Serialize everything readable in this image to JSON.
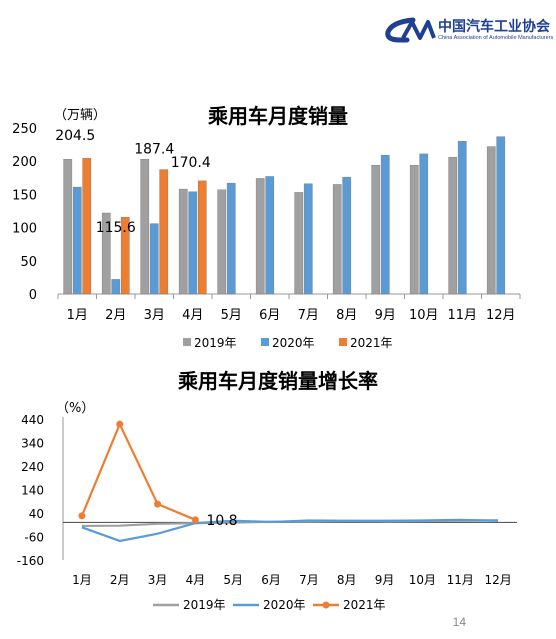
{
  "header": {
    "logo_mark": "CAAM",
    "org_name_cn": "中国汽车工业协会",
    "org_name_en": "China Association of Automobile Manufacturers"
  },
  "page_number": "14",
  "colors": {
    "s2019": "#a0a0a0",
    "s2020": "#5b9bd5",
    "s2021": "#ed7d31",
    "brand": "#1f3f93"
  },
  "chart_data": [
    {
      "type": "bar",
      "title": "乘用车月度销量",
      "ylabel": "（万辆）",
      "categories": [
        "1月",
        "2月",
        "3月",
        "4月",
        "5月",
        "6月",
        "7月",
        "8月",
        "9月",
        "10月",
        "11月",
        "12月"
      ],
      "ylim": [
        0,
        250
      ],
      "yticks": [
        0,
        50,
        100,
        150,
        200,
        250
      ],
      "legend_position": "bottom",
      "series": [
        {
          "name": "2019年",
          "values": [
            203,
            122,
            203,
            158,
            157,
            174,
            153,
            165,
            194,
            194,
            206,
            222
          ]
        },
        {
          "name": "2020年",
          "values": [
            161,
            22,
            106,
            154,
            167,
            177,
            166,
            176,
            209,
            211,
            230,
            237
          ]
        },
        {
          "name": "2021年",
          "values": [
            204.5,
            115.6,
            187.4,
            170.4,
            null,
            null,
            null,
            null,
            null,
            null,
            null,
            null
          ]
        }
      ],
      "data_labels": [
        {
          "series": 2,
          "index": 0,
          "text": "204.5"
        },
        {
          "series": 2,
          "index": 1,
          "text": "115.6"
        },
        {
          "series": 2,
          "index": 2,
          "text": "187.4"
        },
        {
          "series": 2,
          "index": 3,
          "text": "170.4"
        }
      ]
    },
    {
      "type": "line",
      "title": "乘用车月度销量增长率",
      "ylabel": "（%）",
      "categories": [
        "1月",
        "2月",
        "3月",
        "4月",
        "5月",
        "6月",
        "7月",
        "8月",
        "9月",
        "10月",
        "11月",
        "12月"
      ],
      "ylim": [
        -160,
        440
      ],
      "yticks": [
        -160,
        -60,
        40,
        140,
        240,
        340,
        440
      ],
      "legend_position": "bottom",
      "series": [
        {
          "name": "2019年",
          "values": [
            -15,
            -14,
            -6,
            -3,
            -1,
            3,
            4,
            6,
            5,
            6,
            7,
            9
          ]
        },
        {
          "name": "2020年",
          "values": [
            -21,
            -79,
            -48,
            -3,
            7,
            2,
            8,
            7,
            7,
            8,
            11,
            7
          ]
        },
        {
          "name": "2021年",
          "values": [
            28,
            418,
            78,
            11,
            null,
            null,
            null,
            null,
            null,
            null,
            null,
            null
          ]
        }
      ],
      "data_labels": [
        {
          "series": 2,
          "index": 3,
          "text": "10.8"
        }
      ]
    }
  ]
}
